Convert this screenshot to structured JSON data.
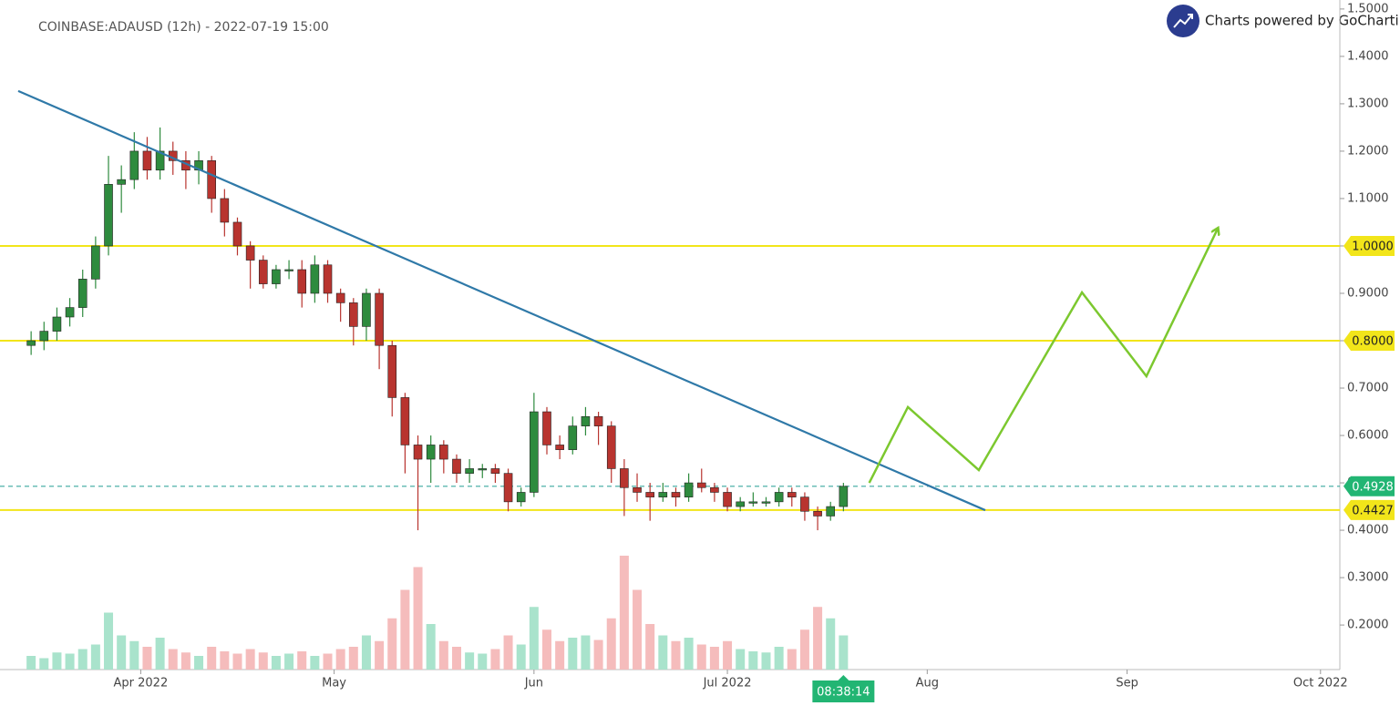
{
  "chart_data": {
    "type": "candlestick",
    "title": "COINBASE:ADAUSD (12h) - 2022-07-19 15:00",
    "credit": "Charts powered by GoCharting",
    "x": [
      "2022-03-14",
      "2022-03-16",
      "2022-03-18",
      "2022-03-20",
      "2022-03-22",
      "2022-03-24",
      "2022-03-26",
      "2022-03-28",
      "2022-03-30",
      "2022-04-01",
      "2022-04-03",
      "2022-04-05",
      "2022-04-07",
      "2022-04-09",
      "2022-04-11",
      "2022-04-13",
      "2022-04-15",
      "2022-04-17",
      "2022-04-19",
      "2022-04-21",
      "2022-04-23",
      "2022-04-25",
      "2022-04-27",
      "2022-04-29",
      "2022-05-01",
      "2022-05-03",
      "2022-05-05",
      "2022-05-07",
      "2022-05-09",
      "2022-05-11",
      "2022-05-13",
      "2022-05-15",
      "2022-05-17",
      "2022-05-19",
      "2022-05-21",
      "2022-05-23",
      "2022-05-25",
      "2022-05-27",
      "2022-05-29",
      "2022-05-31",
      "2022-06-02",
      "2022-06-04",
      "2022-06-06",
      "2022-06-08",
      "2022-06-10",
      "2022-06-12",
      "2022-06-14",
      "2022-06-16",
      "2022-06-18",
      "2022-06-20",
      "2022-06-22",
      "2022-06-24",
      "2022-06-26",
      "2022-06-28",
      "2022-06-30",
      "2022-07-02",
      "2022-07-04",
      "2022-07-06",
      "2022-07-08",
      "2022-07-10",
      "2022-07-12",
      "2022-07-14",
      "2022-07-16",
      "2022-07-18"
    ],
    "open": [
      0.79,
      0.8,
      0.82,
      0.85,
      0.87,
      0.93,
      1.0,
      1.13,
      1.14,
      1.2,
      1.16,
      1.2,
      1.18,
      1.16,
      1.18,
      1.1,
      1.05,
      1.0,
      0.97,
      0.92,
      0.95,
      0.95,
      0.9,
      0.96,
      0.9,
      0.88,
      0.83,
      0.9,
      0.79,
      0.68,
      0.58,
      0.55,
      0.58,
      0.55,
      0.52,
      0.53,
      0.53,
      0.52,
      0.46,
      0.48,
      0.65,
      0.58,
      0.57,
      0.62,
      0.64,
      0.62,
      0.53,
      0.49,
      0.48,
      0.47,
      0.48,
      0.47,
      0.5,
      0.49,
      0.48,
      0.45,
      0.46,
      0.46,
      0.46,
      0.48,
      0.47,
      0.44,
      0.43,
      0.45
    ],
    "high": [
      0.82,
      0.84,
      0.87,
      0.89,
      0.95,
      1.02,
      1.19,
      1.17,
      1.24,
      1.23,
      1.25,
      1.22,
      1.2,
      1.2,
      1.19,
      1.12,
      1.06,
      1.01,
      0.98,
      0.96,
      0.97,
      0.97,
      0.98,
      0.97,
      0.91,
      0.89,
      0.91,
      0.91,
      0.8,
      0.69,
      0.6,
      0.6,
      0.59,
      0.56,
      0.55,
      0.54,
      0.54,
      0.53,
      0.49,
      0.69,
      0.66,
      0.6,
      0.64,
      0.66,
      0.65,
      0.63,
      0.55,
      0.52,
      0.5,
      0.5,
      0.49,
      0.52,
      0.53,
      0.5,
      0.49,
      0.47,
      0.48,
      0.47,
      0.49,
      0.49,
      0.48,
      0.45,
      0.46,
      0.5
    ],
    "low": [
      0.77,
      0.78,
      0.8,
      0.83,
      0.85,
      0.91,
      0.98,
      1.07,
      1.12,
      1.14,
      1.14,
      1.15,
      1.12,
      1.13,
      1.07,
      1.02,
      0.98,
      0.91,
      0.91,
      0.91,
      0.93,
      0.87,
      0.88,
      0.88,
      0.84,
      0.79,
      0.8,
      0.74,
      0.64,
      0.52,
      0.4,
      0.5,
      0.52,
      0.5,
      0.5,
      0.51,
      0.5,
      0.44,
      0.45,
      0.47,
      0.56,
      0.55,
      0.56,
      0.6,
      0.58,
      0.5,
      0.43,
      0.46,
      0.42,
      0.46,
      0.45,
      0.46,
      0.48,
      0.46,
      0.44,
      0.44,
      0.45,
      0.45,
      0.45,
      0.45,
      0.42,
      0.4,
      0.42,
      0.44
    ],
    "close": [
      0.8,
      0.82,
      0.85,
      0.87,
      0.93,
      1.0,
      1.13,
      1.14,
      1.2,
      1.16,
      1.2,
      1.18,
      1.16,
      1.18,
      1.1,
      1.05,
      1.0,
      0.97,
      0.92,
      0.95,
      0.95,
      0.9,
      0.96,
      0.9,
      0.88,
      0.83,
      0.9,
      0.79,
      0.68,
      0.58,
      0.55,
      0.58,
      0.55,
      0.52,
      0.53,
      0.53,
      0.52,
      0.46,
      0.48,
      0.65,
      0.58,
      0.57,
      0.62,
      0.64,
      0.62,
      0.53,
      0.49,
      0.48,
      0.47,
      0.48,
      0.47,
      0.5,
      0.49,
      0.48,
      0.45,
      0.46,
      0.46,
      0.46,
      0.48,
      0.47,
      0.44,
      0.43,
      0.45,
      0.4928
    ],
    "up_color": "#2e8b3e",
    "down_color": "#b8342f",
    "volume": {
      "values": [
        12,
        10,
        15,
        14,
        18,
        22,
        50,
        30,
        25,
        20,
        28,
        18,
        15,
        12,
        20,
        16,
        14,
        18,
        15,
        12,
        14,
        16,
        12,
        14,
        18,
        20,
        30,
        25,
        45,
        70,
        90,
        40,
        25,
        20,
        15,
        14,
        18,
        30,
        22,
        55,
        35,
        25,
        28,
        30,
        26,
        45,
        100,
        70,
        40,
        30,
        25,
        28,
        22,
        20,
        25,
        18,
        16,
        15,
        20,
        18,
        35,
        55,
        45,
        30
      ],
      "ylim": [
        0,
        100
      ],
      "up_color": "#a9e3cc",
      "down_color": "#f5bcbc"
    },
    "xlim": [
      "2022-03-13",
      "2022-10-04"
    ],
    "xticks": [
      {
        "value": "2022-04-01",
        "label": "Apr 2022"
      },
      {
        "value": "2022-05-01",
        "label": "May"
      },
      {
        "value": "2022-06-01",
        "label": "Jun"
      },
      {
        "value": "2022-07-01",
        "label": "Jul 2022"
      },
      {
        "value": "2022-08-01",
        "label": "Aug"
      },
      {
        "value": "2022-09-01",
        "label": "Sep"
      },
      {
        "value": "2022-10-01",
        "label": "Oct 2022"
      }
    ],
    "ylim": [
      0.106,
      1.519
    ],
    "yticks": [
      {
        "value": 0.2,
        "label": "0.2000"
      },
      {
        "value": 0.3,
        "label": "0.3000"
      },
      {
        "value": 0.4,
        "label": "0.4000"
      },
      {
        "value": 0.5,
        "label": "0.5000"
      },
      {
        "value": 0.6,
        "label": "0.6000"
      },
      {
        "value": 0.7,
        "label": "0.7000"
      },
      {
        "value": 0.8,
        "label": "0.8000"
      },
      {
        "value": 0.9,
        "label": "0.9000"
      },
      {
        "value": 1.0,
        "label": "1.0000"
      },
      {
        "value": 1.1,
        "label": "1.1000"
      },
      {
        "value": 1.2,
        "label": "1.2000"
      },
      {
        "value": 1.3,
        "label": "1.3000"
      },
      {
        "value": 1.4,
        "label": "1.4000"
      },
      {
        "value": 1.5,
        "label": "1.5000"
      }
    ],
    "levels": [
      {
        "value": 1.0,
        "label": "1.0000"
      },
      {
        "value": 0.8,
        "label": "0.8000"
      },
      {
        "value": 0.4427,
        "label": "0.4427"
      }
    ],
    "level_color": "#f2e51a",
    "current_price": {
      "value": 0.4928,
      "label": "0.4928",
      "color": "#22b573"
    },
    "trendline": {
      "x": [
        "2022-03-13",
        "2022-08-10"
      ],
      "y": [
        1.327,
        0.4423
      ],
      "color": "#2f79a8"
    },
    "projection": {
      "x": [
        "2022-07-23",
        "2022-07-29",
        "2022-08-09",
        "2022-08-25",
        "2022-09-04",
        "2022-09-15"
      ],
      "y": [
        0.5,
        0.66,
        0.527,
        0.902,
        0.725,
        1.035
      ],
      "color": "#7cc82f"
    },
    "countdown": "08:38:14"
  }
}
